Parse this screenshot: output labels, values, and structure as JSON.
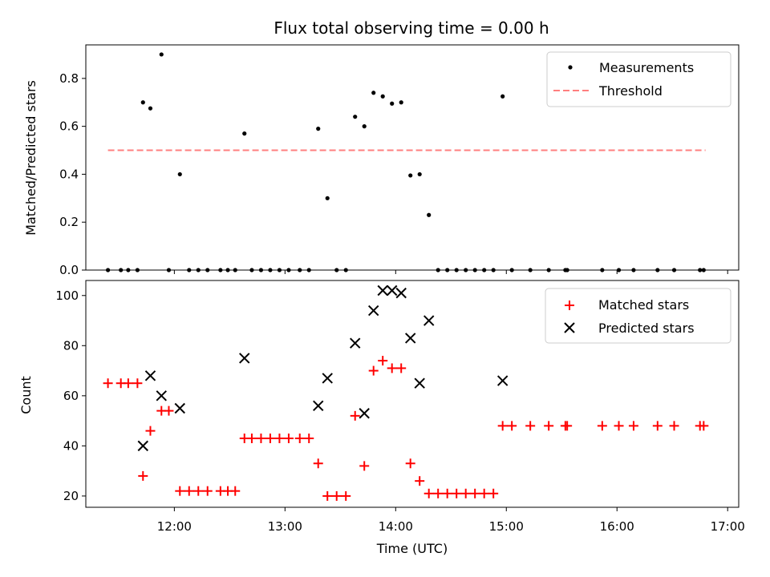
{
  "chart_data": [
    {
      "type": "scatter",
      "title": "Flux total observing time = 0.00 h",
      "xlabel": "",
      "ylabel": "Matched/Predicted stars",
      "xlim": [
        "11:12",
        "17:06"
      ],
      "ylim": [
        0,
        0.94
      ],
      "yticks": [
        0,
        0.2,
        0.4,
        0.6,
        0.8
      ],
      "ytick_labels": [
        "0.0",
        "0.2",
        "0.4",
        "0.6",
        "0.8"
      ],
      "legend_position": "upper right",
      "series": [
        {
          "name": "Measurements",
          "marker": "dot",
          "color": "#000000",
          "points": [
            [
              "11:24",
              0.0
            ],
            [
              "11:31",
              0.0
            ],
            [
              "11:35",
              0.0
            ],
            [
              "11:40",
              0.0
            ],
            [
              "11:43",
              0.7
            ],
            [
              "11:47",
              0.675
            ],
            [
              "11:53",
              0.9
            ],
            [
              "11:57",
              0.0
            ],
            [
              "12:03",
              0.4
            ],
            [
              "12:08",
              0.0
            ],
            [
              "12:13",
              0.0
            ],
            [
              "12:18",
              0.0
            ],
            [
              "12:25",
              0.0
            ],
            [
              "12:29",
              0.0
            ],
            [
              "12:33",
              0.0
            ],
            [
              "12:38",
              0.57
            ],
            [
              "12:42",
              0.0
            ],
            [
              "12:47",
              0.0
            ],
            [
              "12:52",
              0.0
            ],
            [
              "12:57",
              0.0
            ],
            [
              "13:02",
              0.0
            ],
            [
              "13:08",
              0.0
            ],
            [
              "13:13",
              0.0
            ],
            [
              "13:18",
              0.59
            ],
            [
              "13:23",
              0.3
            ],
            [
              "13:28",
              0.0
            ],
            [
              "13:33",
              0.0
            ],
            [
              "13:38",
              0.64
            ],
            [
              "13:43",
              0.6
            ],
            [
              "13:48",
              0.74
            ],
            [
              "13:53",
              0.725
            ],
            [
              "13:58",
              0.695
            ],
            [
              "14:03",
              0.7
            ],
            [
              "14:08",
              0.395
            ],
            [
              "14:13",
              0.4
            ],
            [
              "14:18",
              0.23
            ],
            [
              "14:23",
              0.0
            ],
            [
              "14:28",
              0.0
            ],
            [
              "14:33",
              0.0
            ],
            [
              "14:38",
              0.0
            ],
            [
              "14:43",
              0.0
            ],
            [
              "14:48",
              0.0
            ],
            [
              "14:53",
              0.0
            ],
            [
              "14:58",
              0.725
            ],
            [
              "15:03",
              0.0
            ],
            [
              "15:13",
              0.0
            ],
            [
              "15:23",
              0.0
            ],
            [
              "15:32",
              0.0
            ],
            [
              "15:33",
              0.0
            ],
            [
              "15:52",
              0.0
            ],
            [
              "16:01",
              0.0
            ],
            [
              "16:09",
              0.0
            ],
            [
              "16:22",
              0.0
            ],
            [
              "16:31",
              0.0
            ],
            [
              "16:45",
              0.0
            ],
            [
              "16:47",
              0.0
            ]
          ]
        },
        {
          "name": "Threshold",
          "type": "line",
          "style": "dashed",
          "color": "#ff7f7f",
          "points": [
            [
              "11:24",
              0.5
            ],
            [
              "16:48",
              0.5
            ]
          ]
        }
      ]
    },
    {
      "type": "scatter",
      "title": "",
      "xlabel": "Time (UTC)",
      "ylabel": "Count",
      "xlim": [
        "11:12",
        "17:06"
      ],
      "ylim": [
        15.5,
        106
      ],
      "yticks": [
        20,
        40,
        60,
        80,
        100
      ],
      "ytick_labels": [
        "20",
        "40",
        "60",
        "80",
        "100"
      ],
      "xticks": [
        "12:00",
        "13:00",
        "14:00",
        "15:00",
        "16:00",
        "17:00"
      ],
      "xtick_labels": [
        "12:00",
        "13:00",
        "14:00",
        "15:00",
        "16:00",
        "17:00"
      ],
      "legend_position": "upper right",
      "series": [
        {
          "name": "Matched stars",
          "marker": "plus",
          "color": "#ff0000",
          "points": [
            [
              "11:24",
              65
            ],
            [
              "11:31",
              65
            ],
            [
              "11:35",
              65
            ],
            [
              "11:40",
              65
            ],
            [
              "11:43",
              28
            ],
            [
              "11:47",
              46
            ],
            [
              "11:53",
              54
            ],
            [
              "11:57",
              54
            ],
            [
              "12:03",
              22
            ],
            [
              "12:08",
              22
            ],
            [
              "12:13",
              22
            ],
            [
              "12:18",
              22
            ],
            [
              "12:25",
              22
            ],
            [
              "12:29",
              22
            ],
            [
              "12:33",
              22
            ],
            [
              "12:38",
              43
            ],
            [
              "12:42",
              43
            ],
            [
              "12:47",
              43
            ],
            [
              "12:52",
              43
            ],
            [
              "12:57",
              43
            ],
            [
              "13:02",
              43
            ],
            [
              "13:08",
              43
            ],
            [
              "13:13",
              43
            ],
            [
              "13:18",
              33
            ],
            [
              "13:23",
              20
            ],
            [
              "13:28",
              20
            ],
            [
              "13:33",
              20
            ],
            [
              "13:38",
              52
            ],
            [
              "13:43",
              32
            ],
            [
              "13:48",
              70
            ],
            [
              "13:53",
              74
            ],
            [
              "13:58",
              71
            ],
            [
              "14:03",
              71
            ],
            [
              "14:08",
              33
            ],
            [
              "14:13",
              26
            ],
            [
              "14:18",
              21
            ],
            [
              "14:23",
              21
            ],
            [
              "14:28",
              21
            ],
            [
              "14:33",
              21
            ],
            [
              "14:38",
              21
            ],
            [
              "14:43",
              21
            ],
            [
              "14:48",
              21
            ],
            [
              "14:53",
              21
            ],
            [
              "14:58",
              48
            ],
            [
              "15:03",
              48
            ],
            [
              "15:13",
              48
            ],
            [
              "15:23",
              48
            ],
            [
              "15:32",
              48
            ],
            [
              "15:33",
              48
            ],
            [
              "15:52",
              48
            ],
            [
              "16:01",
              48
            ],
            [
              "16:09",
              48
            ],
            [
              "16:22",
              48
            ],
            [
              "16:31",
              48
            ],
            [
              "16:45",
              48
            ],
            [
              "16:47",
              48
            ]
          ]
        },
        {
          "name": "Predicted stars",
          "marker": "x",
          "color": "#000000",
          "points": [
            [
              "11:43",
              40
            ],
            [
              "11:47",
              68
            ],
            [
              "11:53",
              60
            ],
            [
              "12:03",
              55
            ],
            [
              "12:38",
              75
            ],
            [
              "13:18",
              56
            ],
            [
              "13:23",
              67
            ],
            [
              "13:38",
              81
            ],
            [
              "13:43",
              53
            ],
            [
              "13:48",
              94
            ],
            [
              "13:53",
              102
            ],
            [
              "13:58",
              102
            ],
            [
              "14:03",
              101
            ],
            [
              "14:08",
              83
            ],
            [
              "14:13",
              65
            ],
            [
              "14:18",
              90
            ],
            [
              "14:58",
              66
            ]
          ]
        }
      ]
    }
  ]
}
